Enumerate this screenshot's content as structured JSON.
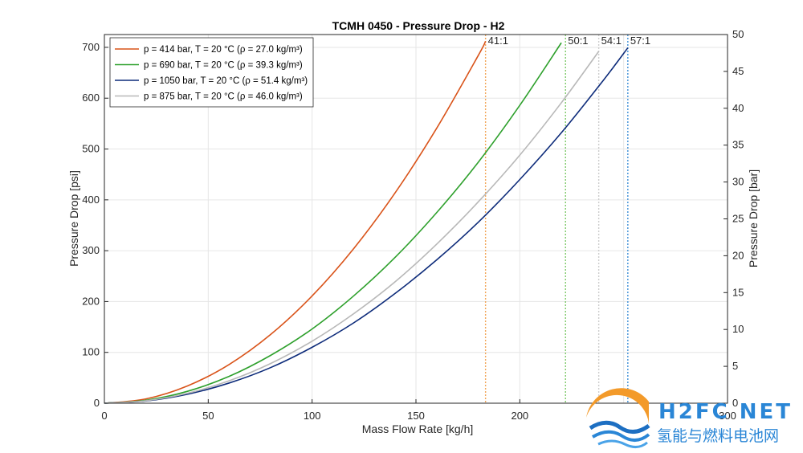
{
  "chart_data": {
    "type": "line",
    "title": "TCMH 0450 - Pressure Drop - H2",
    "xlabel": "Mass Flow Rate [kg/h]",
    "ylabel": "Pressure Drop [psi]",
    "ylabel_right": "Pressure Drop [bar]",
    "xlim": [
      0,
      300
    ],
    "ylim": [
      0,
      725.19
    ],
    "ylim_right": [
      0,
      50
    ],
    "x_ticks": [
      0,
      50,
      100,
      150,
      200,
      300
    ],
    "y_ticks": [
      0,
      100,
      200,
      300,
      400,
      500,
      600,
      700
    ],
    "y_ticks_right": [
      0,
      5,
      10,
      15,
      20,
      25,
      30,
      35,
      40,
      45,
      50
    ],
    "grid": true,
    "legend_position": "top-left",
    "series": [
      {
        "name": "p = 414 bar, T = 20 °C (ρ = 27.0 kg/m³)",
        "color": "#d95319",
        "x": [
          0,
          20,
          40,
          60,
          80,
          100,
          120,
          140,
          160,
          180,
          183.5
        ],
        "y": [
          0,
          8.5,
          34,
          76,
          135,
          211,
          304,
          414,
          541,
          684,
          712
        ]
      },
      {
        "name": "p = 690 bar, T = 20 °C (ρ = 39.3 kg/m³)",
        "color": "#2ea02c",
        "x": [
          0,
          20,
          40,
          60,
          80,
          100,
          120,
          140,
          160,
          180,
          200,
          220
        ],
        "y": [
          0,
          5.9,
          23.4,
          52.7,
          94,
          146,
          211,
          287,
          375,
          474,
          586,
          709
        ]
      },
      {
        "name": "p = 1050 bar, T = 20 °C (ρ = 51.4 kg/m³)",
        "color": "#0d2b7a",
        "x": [
          0,
          20,
          40,
          60,
          80,
          100,
          120,
          140,
          160,
          180,
          200,
          220,
          240,
          252
        ],
        "y": [
          0,
          4.4,
          17.6,
          39.6,
          70,
          110,
          158,
          216,
          282,
          356,
          440,
          532,
          634,
          699
        ]
      },
      {
        "name": "p = 875 bar, T = 20 °C (ρ = 46.0 kg/m³)",
        "color": "#b8b8b8",
        "x": [
          0,
          20,
          40,
          60,
          80,
          100,
          120,
          140,
          160,
          180,
          200,
          220,
          238
        ],
        "y": [
          0,
          4.9,
          19.5,
          44,
          78,
          122,
          176,
          239,
          313,
          396,
          488,
          591,
          692
        ]
      }
    ],
    "vlines": [
      {
        "x": 183.5,
        "label": "41:1",
        "color": "#f2a65a"
      },
      {
        "x": 222,
        "label": "50:1",
        "color": "#7ec96a"
      },
      {
        "x": 238,
        "label": "54:1",
        "color": "#cccccc"
      },
      {
        "x": 252,
        "label": "57:1",
        "color": "#3d8fd6"
      }
    ]
  },
  "watermark": {
    "logo_text": "H2FC NET",
    "subtitle": "氢能与燃料电池网"
  }
}
